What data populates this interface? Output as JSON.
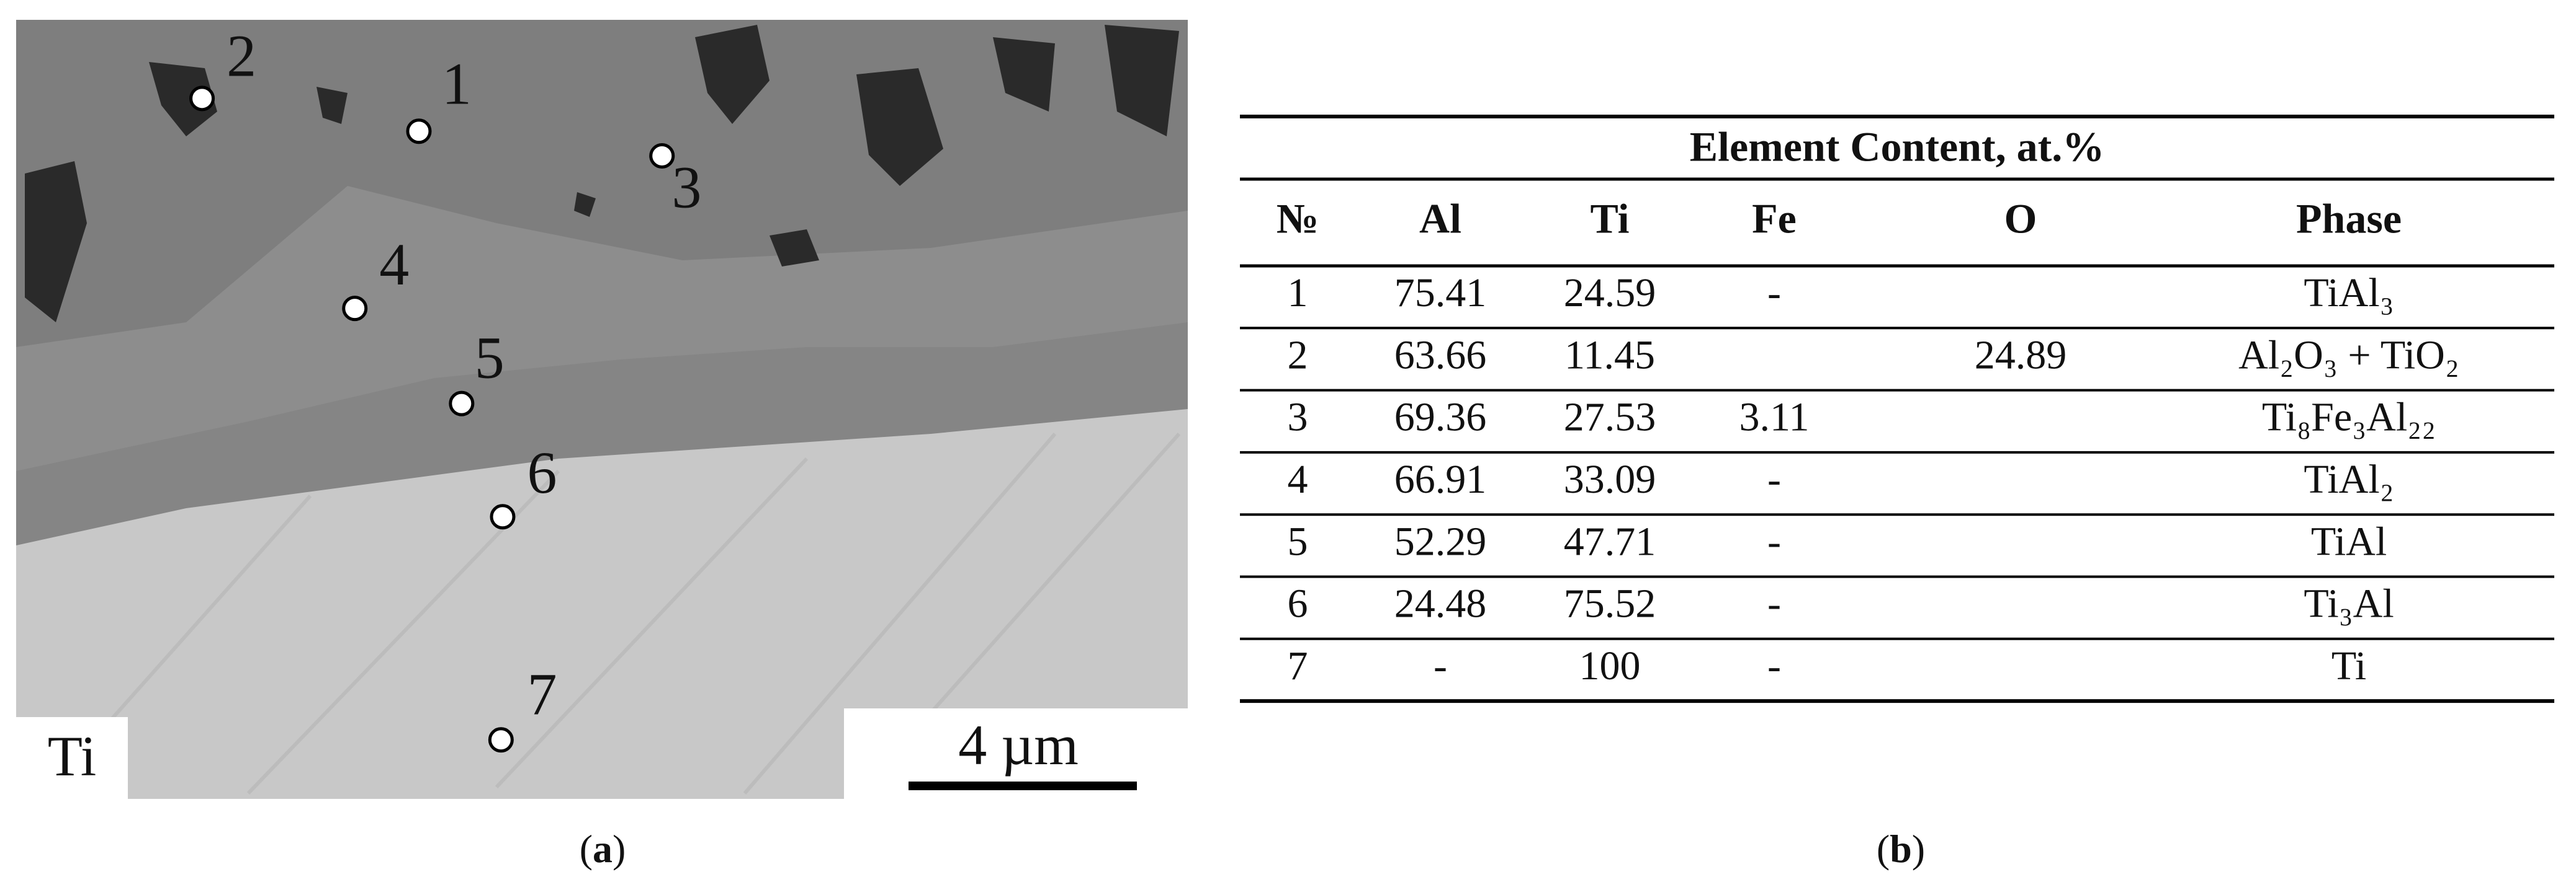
{
  "image": {
    "point_labels": [
      "1",
      "2",
      "3",
      "4",
      "5",
      "6",
      "7"
    ],
    "material_label": "Ti",
    "scale_bar": "4 µm"
  },
  "table": {
    "title": "Element Content, at.%",
    "columns": [
      "№",
      "Al",
      "Ti",
      "Fe",
      "O",
      "Phase"
    ],
    "rows": [
      [
        "1",
        "75.41",
        "24.59",
        "-",
        null,
        "TiAl₃"
      ],
      [
        "2",
        "63.66",
        "11.45",
        null,
        "24.89",
        "Al₂O₃ + TiO₂"
      ],
      [
        "3",
        "69.36",
        "27.53",
        "3.11",
        null,
        "Ti₈Fe₃Al₂₂"
      ],
      [
        "4",
        "66.91",
        "33.09",
        "-",
        null,
        "TiAl₂"
      ],
      [
        "5",
        "52.29",
        "47.71",
        "-",
        null,
        "TiAl"
      ],
      [
        "6",
        "24.48",
        "75.52",
        "-",
        null,
        "Ti₃Al"
      ],
      [
        "7",
        "-",
        "100",
        "-",
        null,
        "Ti"
      ]
    ]
  },
  "captions": {
    "a": [
      "(",
      "a",
      ")"
    ],
    "b": [
      "(",
      "b",
      ")"
    ]
  }
}
